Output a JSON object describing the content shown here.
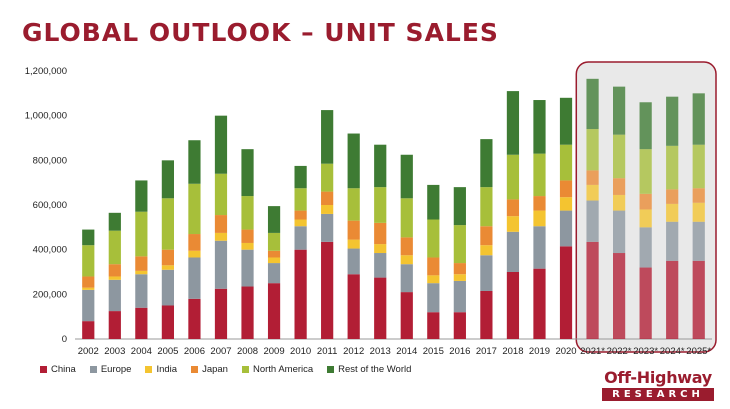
{
  "colors": {
    "title": "#9a1c2e",
    "China": "#b21e35",
    "Europe": "#8d97a0",
    "India": "#f4c430",
    "Japan": "#ea8a34",
    "North America": "#a7bf3a",
    "Rest of the World": "#3e7b33",
    "forecast_box": "#9a1c2e",
    "forecast_bg": "#e9e9e9"
  },
  "title": "GLOBAL OUTLOOK – UNIT SALES",
  "logo": {
    "top": "Off-Highway",
    "bottom": "RESEARCH"
  },
  "chart_data": {
    "type": "bar",
    "stacked": true,
    "categories": [
      "2002",
      "2003",
      "2004",
      "2005",
      "2006",
      "2007",
      "2008",
      "2009",
      "2010",
      "2011",
      "2012",
      "2013",
      "2014",
      "2015",
      "2016",
      "2017",
      "2018",
      "2019",
      "2020",
      "2021*",
      "2022*",
      "2023*",
      "2024*",
      "2025*"
    ],
    "forecast_categories": [
      "2021*",
      "2022*",
      "2023*",
      "2024*",
      "2025*"
    ],
    "ylim": [
      0,
      1200000
    ],
    "yticks": [
      0,
      200000,
      400000,
      600000,
      800000,
      1000000,
      1200000
    ],
    "ytick_labels": [
      "0",
      "200,000",
      "400,000",
      "600,000",
      "800,000",
      "1,000,000",
      "1,200,000"
    ],
    "grid": false,
    "legend_position": "bottom-left",
    "series": [
      {
        "name": "China",
        "values": [
          80000,
          125000,
          140000,
          150000,
          180000,
          225000,
          235000,
          250000,
          400000,
          435000,
          290000,
          275000,
          210000,
          120000,
          120000,
          215000,
          300000,
          315000,
          415000,
          435000,
          385000,
          320000,
          350000,
          350000
        ]
      },
      {
        "name": "Europe",
        "values": [
          140000,
          140000,
          150000,
          160000,
          185000,
          215000,
          165000,
          90000,
          105000,
          125000,
          115000,
          110000,
          125000,
          130000,
          140000,
          160000,
          180000,
          190000,
          160000,
          185000,
          190000,
          180000,
          175000,
          175000
        ]
      },
      {
        "name": "India",
        "values": [
          10000,
          15000,
          15000,
          20000,
          30000,
          35000,
          30000,
          25000,
          30000,
          40000,
          40000,
          40000,
          40000,
          35000,
          30000,
          45000,
          70000,
          70000,
          60000,
          70000,
          70000,
          80000,
          80000,
          85000
        ]
      },
      {
        "name": "Japan",
        "values": [
          50000,
          55000,
          65000,
          70000,
          75000,
          80000,
          60000,
          30000,
          40000,
          60000,
          85000,
          95000,
          80000,
          80000,
          50000,
          85000,
          75000,
          65000,
          75000,
          65000,
          75000,
          70000,
          65000,
          65000
        ]
      },
      {
        "name": "North America",
        "values": [
          140000,
          150000,
          200000,
          230000,
          225000,
          185000,
          150000,
          80000,
          100000,
          125000,
          145000,
          160000,
          175000,
          170000,
          170000,
          175000,
          200000,
          190000,
          160000,
          185000,
          195000,
          200000,
          195000,
          195000
        ]
      },
      {
        "name": "Rest of the World",
        "values": [
          70000,
          80000,
          140000,
          170000,
          195000,
          260000,
          210000,
          120000,
          100000,
          240000,
          245000,
          190000,
          195000,
          155000,
          170000,
          215000,
          285000,
          240000,
          210000,
          225000,
          215000,
          210000,
          220000,
          230000
        ]
      }
    ]
  }
}
